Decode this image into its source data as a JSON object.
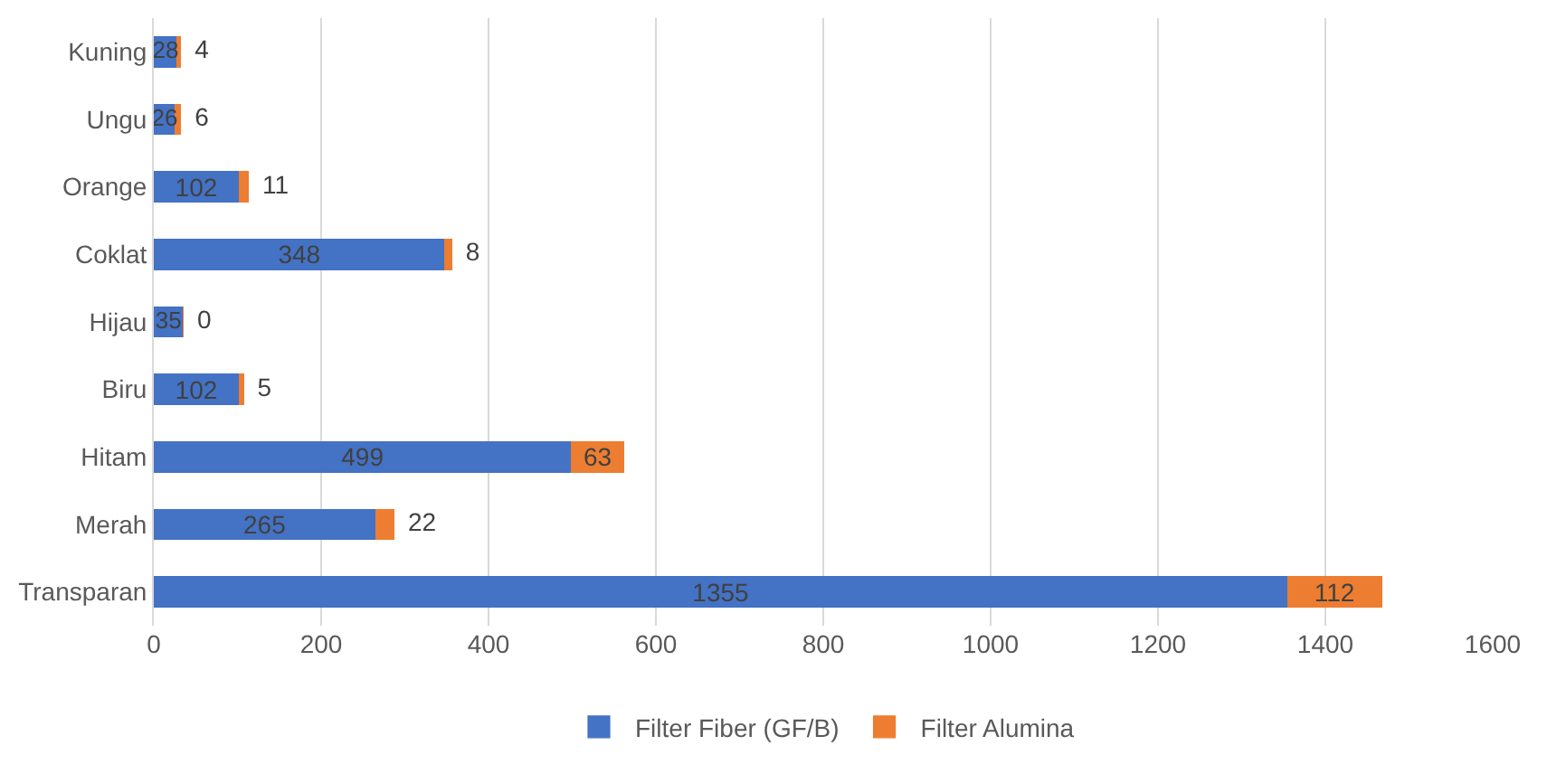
{
  "chart_data": {
    "type": "bar",
    "orientation": "horizontal",
    "stacked": true,
    "categories": [
      "Kuning",
      "Ungu",
      "Orange",
      "Coklat",
      "Hijau",
      "Biru",
      "Hitam",
      "Merah",
      "Transparan"
    ],
    "series": [
      {
        "name": "Filter Fiber (GF/B)",
        "color": "#4472c4",
        "values": [
          28,
          26,
          102,
          348,
          35,
          102,
          499,
          265,
          1355
        ]
      },
      {
        "name": "Filter Alumina",
        "color": "#ed7d31",
        "values": [
          4,
          6,
          11,
          8,
          0,
          5,
          63,
          22,
          112
        ]
      }
    ],
    "xlim": [
      0,
      1600
    ],
    "xticks": [
      0,
      200,
      400,
      600,
      800,
      1000,
      1200,
      1400,
      1600
    ],
    "grid": "x",
    "legend": "bottom",
    "data_labels": true
  }
}
